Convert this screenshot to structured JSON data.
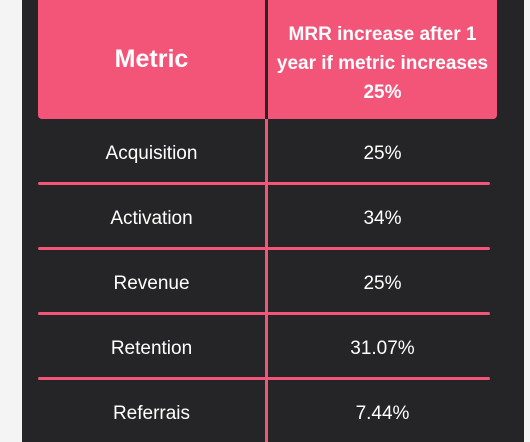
{
  "table": {
    "headers": {
      "metric": "Metric",
      "mrr": "MRR increase after 1 year if metric increases 25%"
    },
    "rows": [
      {
        "metric": "Acquisition",
        "value": "25%"
      },
      {
        "metric": "Activation",
        "value": "34%"
      },
      {
        "metric": "Revenue",
        "value": "25%"
      },
      {
        "metric": "Retention",
        "value": "31.07%"
      },
      {
        "metric": "Referrais",
        "value": "7.44%"
      }
    ]
  },
  "colors": {
    "background": "#252527",
    "accent": "#f35579",
    "text": "#ffffff"
  }
}
